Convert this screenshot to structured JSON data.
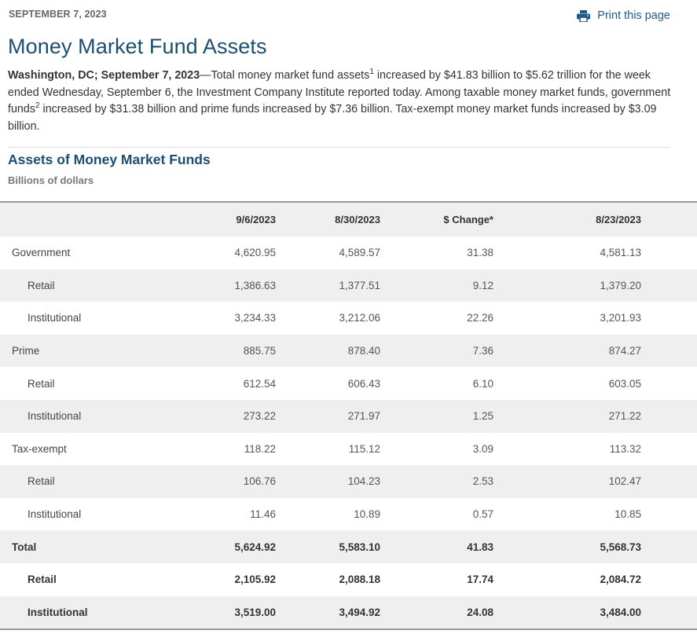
{
  "dateline": "SEPTEMBER 7, 2023",
  "print_link": {
    "label": "Print this page",
    "icon": "printer-icon"
  },
  "title": "Money Market Fund Assets",
  "intro": {
    "lead": "Washington, DC; September 7, 2023",
    "part1": "—Total money market fund assets",
    "sup1": "1",
    "part2": " increased by $41.83 billion to $5.62 trillion for the week ended Wednesday, September 6, the Investment Company Institute reported today. Among taxable money market funds, government funds",
    "sup2": "2",
    "part3": " increased by $31.38 billion and prime funds increased by $7.36 billion. Tax-exempt money market funds increased by $3.09 billion."
  },
  "section": {
    "title": "Assets of Money Market Funds",
    "units": "Billions of dollars"
  },
  "table": {
    "headers": [
      "",
      "9/6/2023",
      "8/30/2023",
      "$ Change*",
      "8/23/2023"
    ],
    "rows": [
      {
        "label": "Government",
        "values": [
          "4,620.95",
          "4,589.57",
          "31.38",
          "4,581.13"
        ]
      },
      {
        "label": "Retail",
        "values": [
          "1,386.63",
          "1,377.51",
          "9.12",
          "1,379.20"
        ]
      },
      {
        "label": "Institutional",
        "values": [
          "3,234.33",
          "3,212.06",
          "22.26",
          "3,201.93"
        ]
      },
      {
        "label": "Prime",
        "values": [
          "885.75",
          "878.40",
          "7.36",
          "874.27"
        ]
      },
      {
        "label": "Retail",
        "values": [
          "612.54",
          "606.43",
          "6.10",
          "603.05"
        ]
      },
      {
        "label": "Institutional",
        "values": [
          "273.22",
          "271.97",
          "1.25",
          "271.22"
        ]
      },
      {
        "label": "Tax-exempt",
        "values": [
          "118.22",
          "115.12",
          "3.09",
          "113.32"
        ]
      },
      {
        "label": "Retail",
        "values": [
          "106.76",
          "104.23",
          "2.53",
          "102.47"
        ]
      },
      {
        "label": "Institutional",
        "values": [
          "11.46",
          "10.89",
          "0.57",
          "10.85"
        ]
      },
      {
        "label": "Total",
        "values": [
          "5,624.92",
          "5,583.10",
          "41.83",
          "5,568.73"
        ]
      },
      {
        "label": "Retail",
        "values": [
          "2,105.92",
          "2,088.18",
          "17.74",
          "2,084.72"
        ]
      },
      {
        "label": "Institutional",
        "values": [
          "3,519.00",
          "3,494.92",
          "24.08",
          "3,484.00"
        ]
      }
    ]
  },
  "colors": {
    "title_blue": "#1b4e70",
    "link_blue": "#1f5b8a",
    "stripe": "#efefef"
  }
}
